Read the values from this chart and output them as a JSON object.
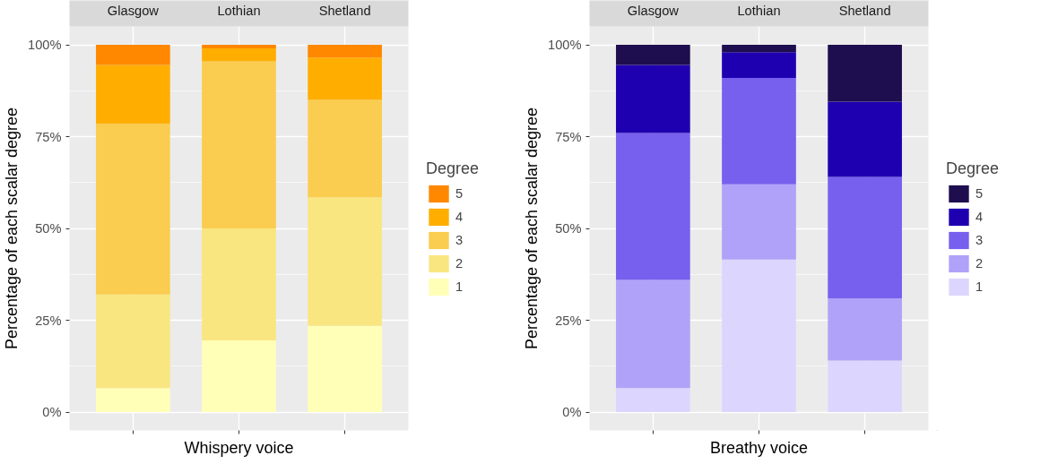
{
  "chart_data": [
    {
      "type": "bar",
      "stacked": true,
      "categories": [
        "Glasgow",
        "Lothian",
        "Shetland"
      ],
      "xlabel": "Whispery voice",
      "ylabel": "Percentage of each scalar degree",
      "ylim": [
        -5,
        105
      ],
      "yticks": [
        {
          "value": 0,
          "label": "0%"
        },
        {
          "value": 25,
          "label": "25%"
        },
        {
          "value": 50,
          "label": "50%"
        },
        {
          "value": 75,
          "label": "75%"
        },
        {
          "value": 100,
          "label": "100%"
        }
      ],
      "grid": true,
      "legend": "right",
      "legend_title": "Degree",
      "series": [
        {
          "name": "1",
          "color": "#ffffb8",
          "values": [
            6.5,
            19.5,
            23.5
          ]
        },
        {
          "name": "2",
          "color": "#f9e681",
          "values": [
            25.5,
            30.5,
            35
          ]
        },
        {
          "name": "3",
          "color": "#facd50",
          "values": [
            46.5,
            45.5,
            26.5
          ]
        },
        {
          "name": "4",
          "color": "#ffae00",
          "values": [
            16,
            3.5,
            11.5
          ]
        },
        {
          "name": "5",
          "color": "#ff8800",
          "values": [
            5.5,
            1,
            3.5
          ]
        }
      ]
    },
    {
      "type": "bar",
      "stacked": true,
      "categories": [
        "Glasgow",
        "Lothian",
        "Shetland"
      ],
      "xlabel": "Breathy voice",
      "ylabel": "Percentage of each scalar degree",
      "ylim": [
        -5,
        105
      ],
      "yticks": [
        {
          "value": 0,
          "label": "0%"
        },
        {
          "value": 25,
          "label": "25%"
        },
        {
          "value": 50,
          "label": "50%"
        },
        {
          "value": 75,
          "label": "75%"
        },
        {
          "value": 100,
          "label": "100%"
        }
      ],
      "grid": true,
      "legend": "right",
      "legend_title": "Degree",
      "series": [
        {
          "name": "1",
          "color": "#dcd6ff",
          "values": [
            6.5,
            41.5,
            14
          ]
        },
        {
          "name": "2",
          "color": "#b0a2f9",
          "values": [
            29.5,
            20.5,
            17
          ]
        },
        {
          "name": "3",
          "color": "#7760ee",
          "values": [
            40,
            29,
            33
          ]
        },
        {
          "name": "4",
          "color": "#1f00b0",
          "values": [
            18.5,
            7,
            20.5
          ]
        },
        {
          "name": "5",
          "color": "#1e0e4f",
          "values": [
            5.5,
            2,
            15.5
          ]
        }
      ]
    }
  ]
}
